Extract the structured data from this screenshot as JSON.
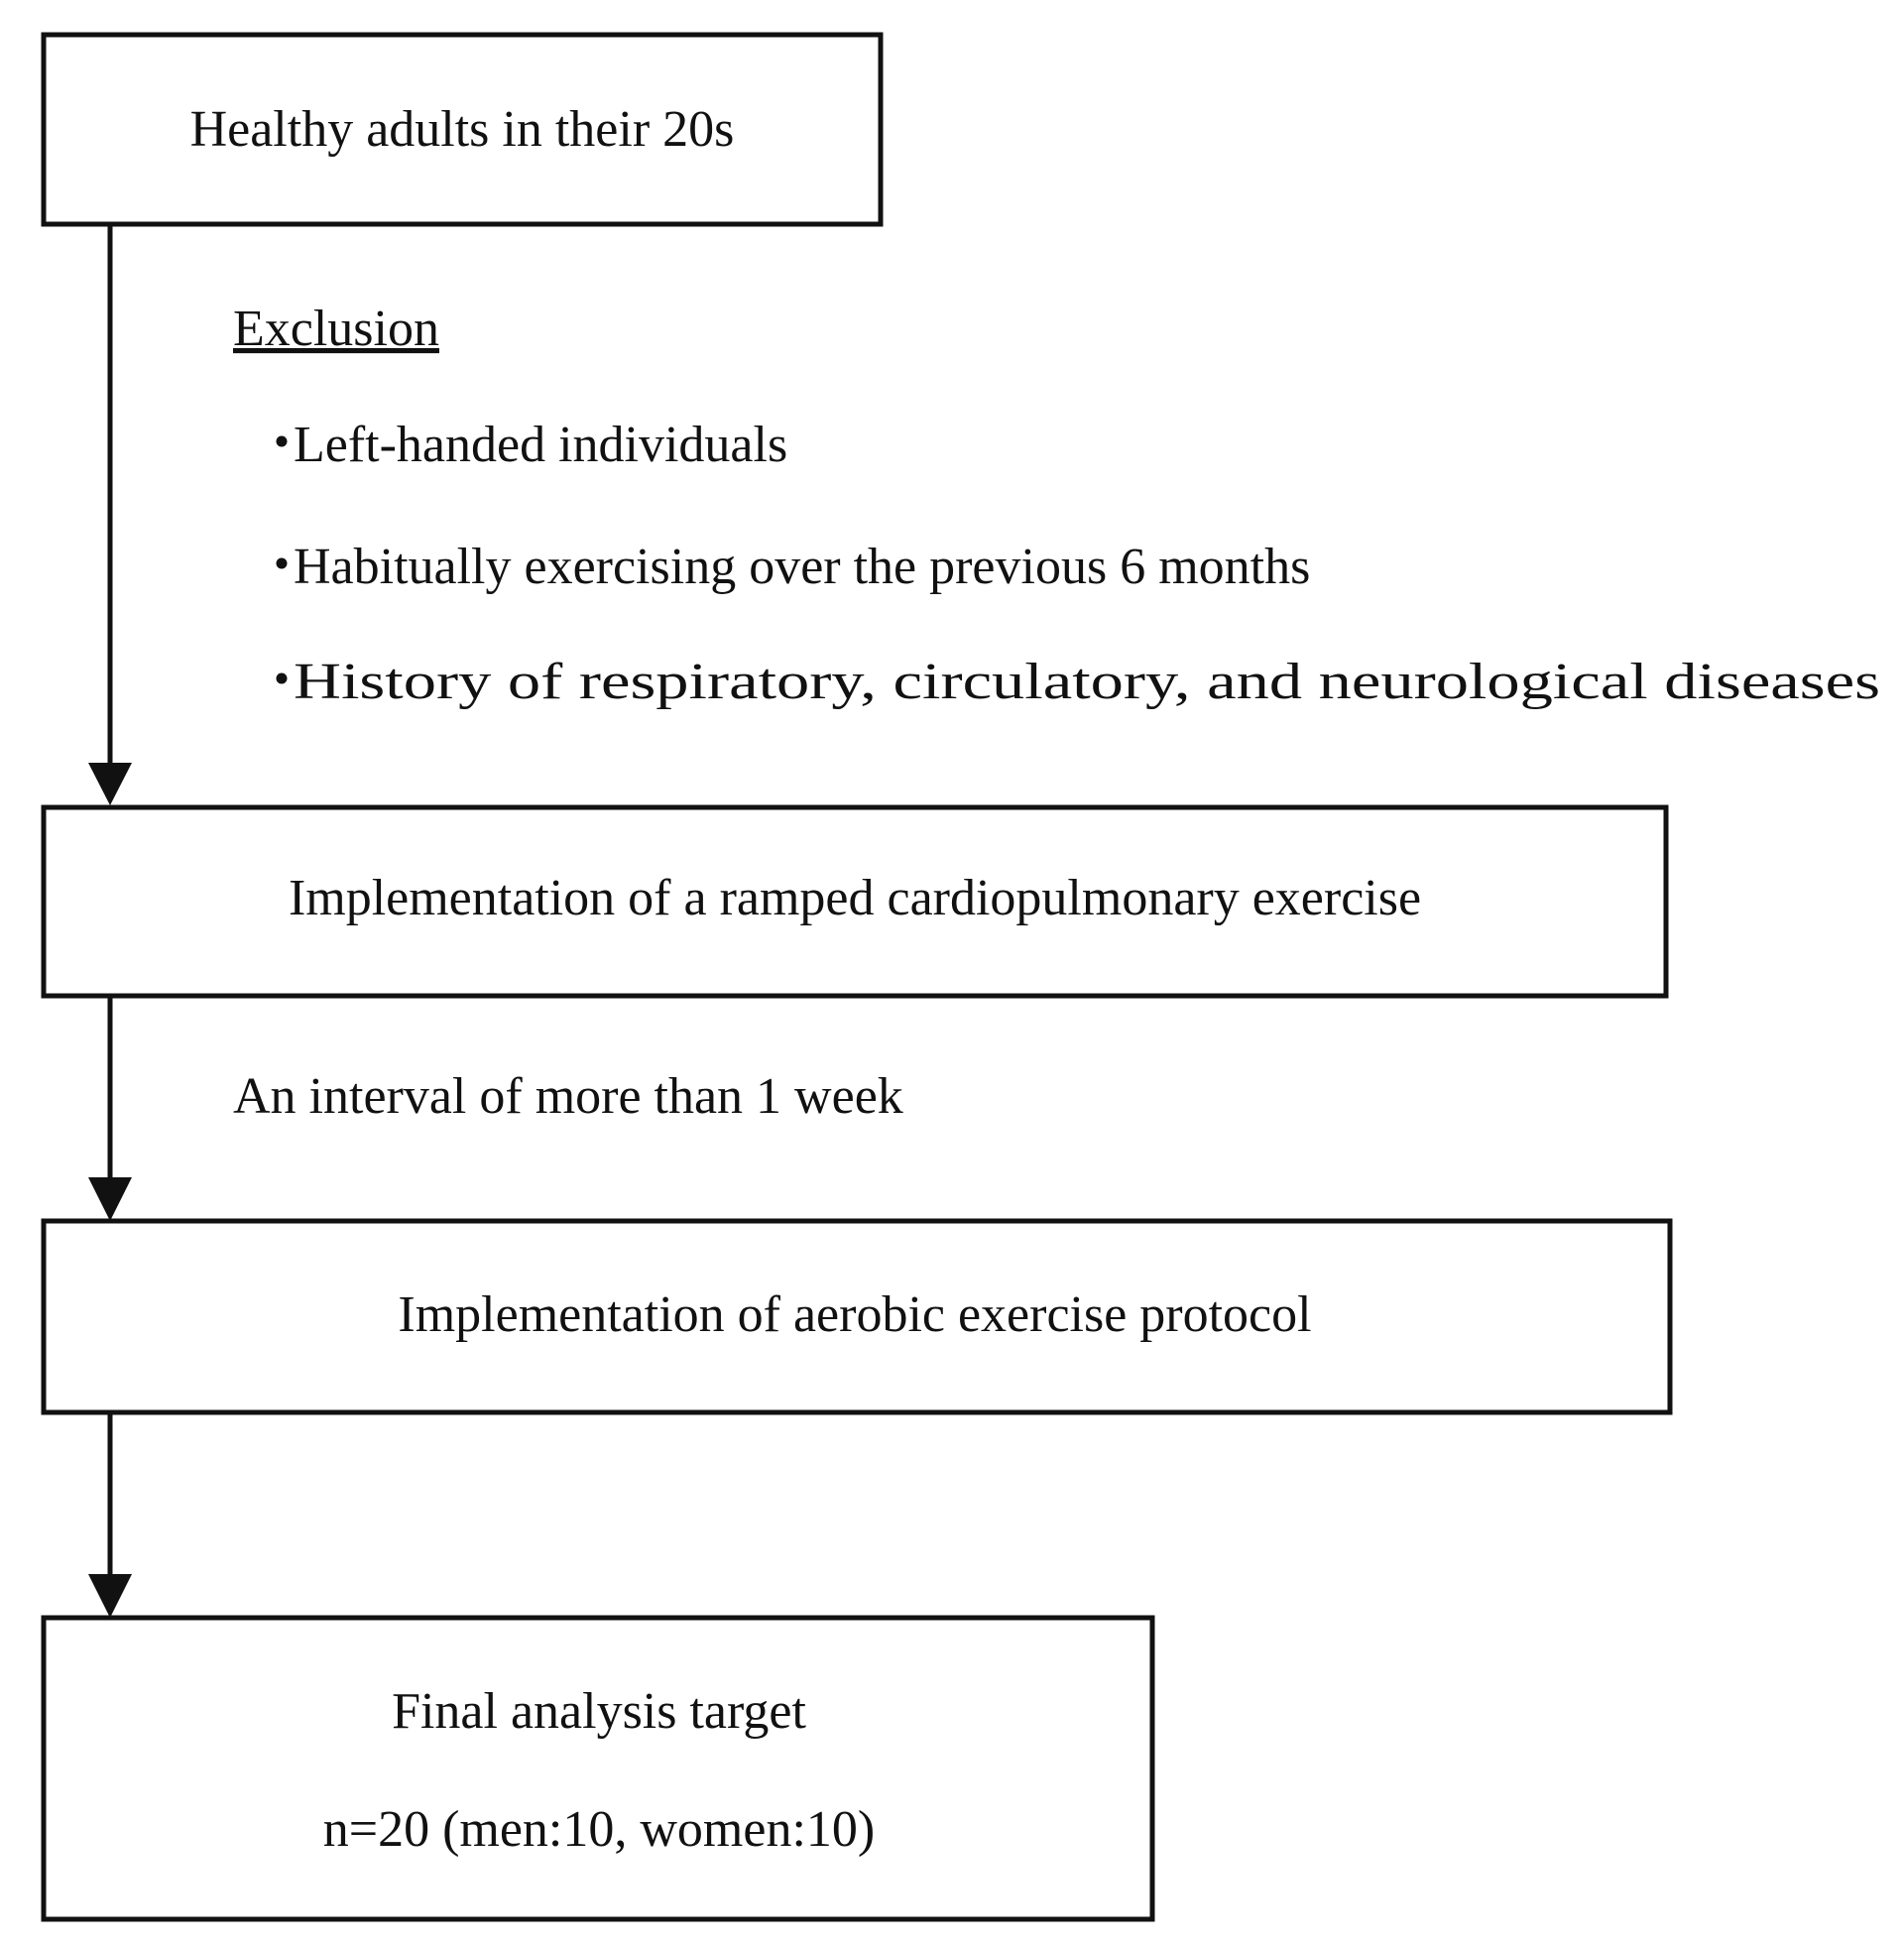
{
  "nodes": [
    {
      "label": "Healthy adults in their 20s"
    },
    {
      "label": "Implementation of a ramped cardiopulmonary exercise"
    },
    {
      "label": "Implementation of aerobic exercise protocol"
    },
    {
      "label": "Final analysis target",
      "detail": "n=20 (men:10, women:10)"
    }
  ],
  "exclusion": {
    "title": "Exclusion",
    "bullet": "・",
    "items": [
      "Left-handed individuals",
      "Habitually exercising over the previous 6 months",
      "History of respiratory, circulatory, and neurological diseases"
    ]
  },
  "interval": "An interval of more than 1 week"
}
